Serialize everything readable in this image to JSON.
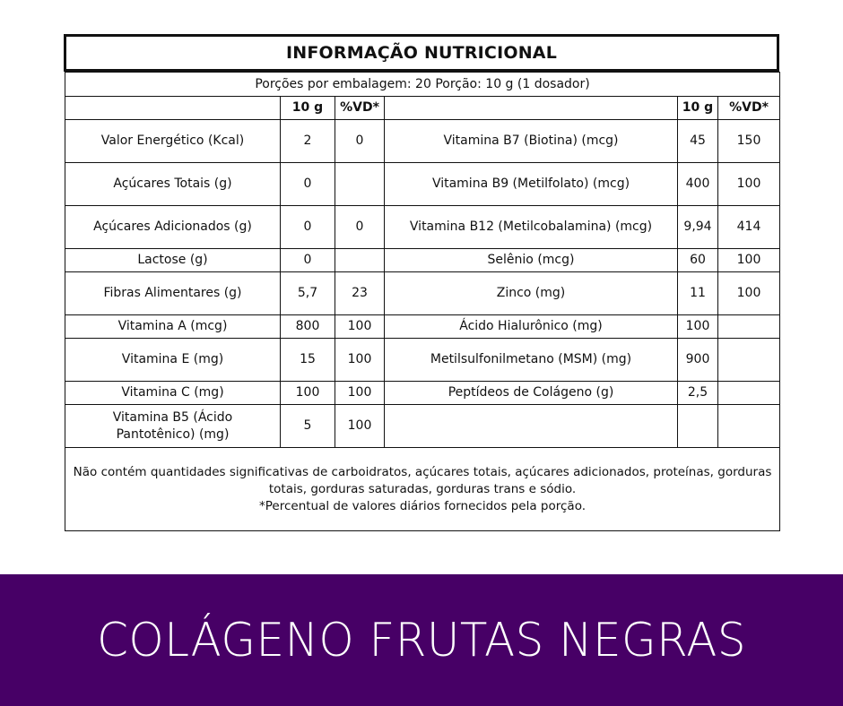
{
  "title": "INFORMAÇÃO NUTRICIONAL",
  "serving": "Porções por embalagem: 20 Porção: 10 g (1 dosador)",
  "headers": {
    "amount": "10 g",
    "dv": "%VD*"
  },
  "rows": [
    {
      "h": "tall",
      "l": [
        "Valor Energético (Kcal)",
        "2",
        "0"
      ],
      "r": [
        "Vitamina B7 (Biotina) (mcg)",
        "45",
        "150"
      ]
    },
    {
      "h": "tall",
      "l": [
        "Açúcares Totais (g)",
        "0",
        ""
      ],
      "r": [
        "Vitamina B9 (Metilfolato) (mcg)",
        "400",
        "100"
      ]
    },
    {
      "h": "tall",
      "l": [
        "Açúcares Adicionados (g)",
        "0",
        "0"
      ],
      "r": [
        "Vitamina B12 (Metilcobalamina) (mcg)",
        "9,94",
        "414"
      ]
    },
    {
      "h": "short",
      "l": [
        "Lactose (g)",
        "0",
        ""
      ],
      "r": [
        "Selênio (mcg)",
        "60",
        "100"
      ]
    },
    {
      "h": "tall",
      "l": [
        "Fibras Alimentares (g)",
        "5,7",
        "23"
      ],
      "r": [
        "Zinco (mg)",
        "11",
        "100"
      ]
    },
    {
      "h": "short",
      "l": [
        "Vitamina A (mcg)",
        "800",
        "100"
      ],
      "r": [
        "Ácido Hialurônico (mg)",
        "100",
        ""
      ]
    },
    {
      "h": "tall",
      "l": [
        "Vitamina E (mg)",
        "15",
        "100"
      ],
      "r": [
        "Metilsulfonilmetano (MSM) (mg)",
        "900",
        ""
      ]
    },
    {
      "h": "short",
      "l": [
        "Vitamina C (mg)",
        "100",
        "100"
      ],
      "r": [
        "Peptídeos de Colágeno (g)",
        "2,5",
        ""
      ]
    },
    {
      "h": "tall",
      "l": [
        "Vitamina B5 (Ácido Pantotênico) (mg)",
        "5",
        "100"
      ],
      "r": [
        "",
        "",
        ""
      ]
    }
  ],
  "footer": {
    "line1": "Não contém quantidades significativas de carboidratos, açúcares totais, açúcares adicionados, proteínas, gorduras totais, gorduras saturadas, gorduras trans e sódio.",
    "line2": "*Percentual de valores diários fornecidos pela porção."
  },
  "banner": {
    "text": "COLÁGENO FRUTAS NEGRAS",
    "color": "#470066"
  }
}
